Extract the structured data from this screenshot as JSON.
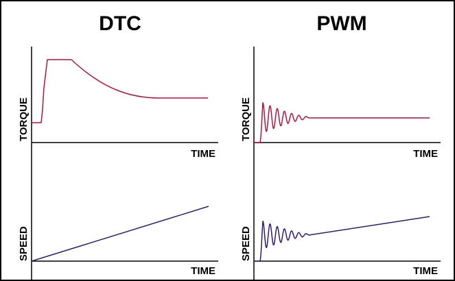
{
  "panels": [
    {
      "heading": "DTC",
      "torque": {
        "ylabel": "TORQUE",
        "xlabel": "TIME"
      },
      "speed": {
        "ylabel": "SPEED",
        "xlabel": "TIME"
      }
    },
    {
      "heading": "PWM",
      "torque": {
        "ylabel": "TORQUE",
        "xlabel": "TIME"
      },
      "speed": {
        "ylabel": "SPEED",
        "xlabel": "TIME"
      }
    }
  ],
  "colors": {
    "torque_line": "#b3143c",
    "speed_line": "#2e1a78",
    "axis": "#000000",
    "frame": "#000000"
  }
}
